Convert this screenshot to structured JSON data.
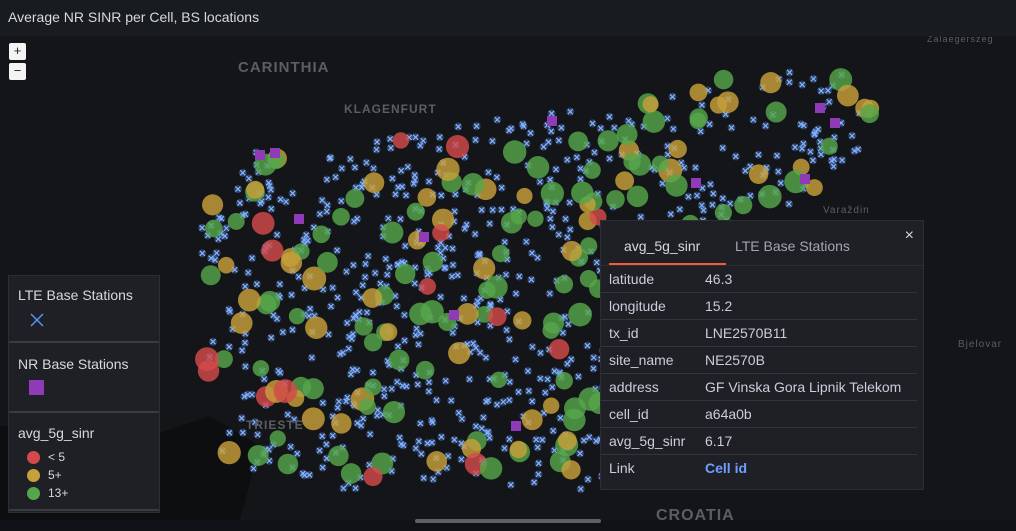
{
  "panel": {
    "title": "Average NR SINR per Cell, BS locations"
  },
  "map": {
    "zoom_in_label": "+",
    "zoom_out_label": "−",
    "place_labels": [
      {
        "text": "Zalaegerszeg",
        "size": "small"
      },
      {
        "text": "CARINTHIA",
        "size": "large"
      },
      {
        "text": "KLAGENFURT",
        "size": "medium"
      },
      {
        "text": "Varaždin",
        "size": "small"
      },
      {
        "text": "Bjelovar",
        "size": "small"
      },
      {
        "text": "TRIESTE",
        "size": "medium"
      },
      {
        "text": "CROATIA",
        "size": "large"
      }
    ]
  },
  "legend": {
    "lte_title": "LTE Base Stations",
    "nr_title": "NR Base Stations",
    "sinr_title": "avg_5g_sinr",
    "sinr_entries": [
      {
        "label": "< 5",
        "color": "#d44a4a"
      },
      {
        "label": "5+",
        "color": "#c8a03a"
      },
      {
        "label": "13+",
        "color": "#56a64b"
      }
    ],
    "lte_color": "#5794f2",
    "nr_color": "#8f3bb8"
  },
  "tooltip": {
    "tabs": [
      {
        "label": "avg_5g_sinr",
        "active": true
      },
      {
        "label": "LTE Base Stations",
        "active": false
      }
    ],
    "close_label": "×",
    "rows": [
      {
        "key": "latitude",
        "value": "46.3"
      },
      {
        "key": "longitude",
        "value": "15.2"
      },
      {
        "key": "tx_id",
        "value": "LNE2570B11"
      },
      {
        "key": "site_name",
        "value": "NE2570B"
      },
      {
        "key": "address",
        "value": "GF Vinska Gora Lipnik Telekom"
      },
      {
        "key": "cell_id",
        "value": "a64a0b"
      },
      {
        "key": "avg_5g_sinr",
        "value": "6.17"
      },
      {
        "key": "Link",
        "value": "Cell id",
        "is_link": true
      }
    ]
  },
  "colors": {
    "sinr_low": "#d44a4a",
    "sinr_mid": "#c8a03a",
    "sinr_high": "#56a64b",
    "lte_marker": "#5794f2",
    "nr_marker": "#8f3bb8",
    "link": "#6e9fff"
  }
}
